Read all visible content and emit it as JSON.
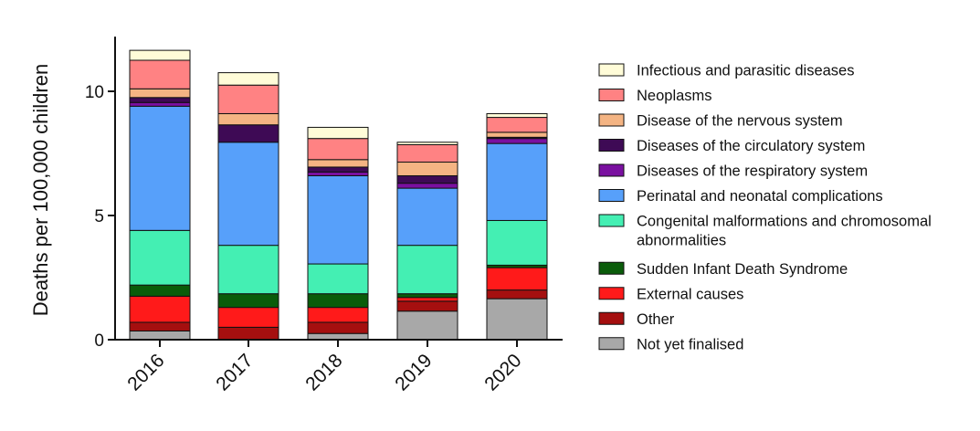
{
  "chart_data": {
    "type": "bar",
    "stacked": true,
    "title": "",
    "xlabel": "",
    "ylabel": "Deaths per 100,000 children",
    "ylim": [
      0,
      12.2
    ],
    "yticks": [
      0,
      5,
      10
    ],
    "categories": [
      "2016",
      "2017",
      "2018",
      "2019",
      "2020"
    ],
    "legend_position": "right",
    "grid": false,
    "series": [
      {
        "name": "Not yet finalised",
        "color": "#a8a8a8",
        "values": [
          0.35,
          0.0,
          0.25,
          1.15,
          1.65
        ]
      },
      {
        "name": "Other",
        "color": "#a50f0f",
        "values": [
          0.35,
          0.5,
          0.45,
          0.4,
          0.35
        ]
      },
      {
        "name": "External causes",
        "color": "#ff1a1a",
        "values": [
          1.05,
          0.8,
          0.6,
          0.15,
          0.9
        ]
      },
      {
        "name": "Sudden Infant Death Syndrome",
        "color": "#0a5c0a",
        "values": [
          0.45,
          0.55,
          0.55,
          0.15,
          0.1
        ]
      },
      {
        "name": "Congenital malformations and chromosomal abnormalities",
        "color": "#44efb3",
        "values": [
          2.2,
          1.95,
          1.2,
          1.95,
          1.8
        ]
      },
      {
        "name": "Perinatal and neonatal complications",
        "color": "#57a0fa",
        "values": [
          5.0,
          4.15,
          3.55,
          2.3,
          3.1
        ]
      },
      {
        "name": "Diseases of the respiratory system",
        "color": "#7a10a0",
        "values": [
          0.15,
          0.0,
          0.15,
          0.2,
          0.2
        ]
      },
      {
        "name": "Diseases of the circulatory system",
        "color": "#3e0a55",
        "values": [
          0.2,
          0.7,
          0.2,
          0.3,
          0.05
        ]
      },
      {
        "name": "Disease of the nervous system",
        "color": "#f4b483",
        "values": [
          0.35,
          0.45,
          0.3,
          0.55,
          0.2
        ]
      },
      {
        "name": "Neoplasms",
        "color": "#ff8283",
        "values": [
          1.15,
          1.15,
          0.85,
          0.7,
          0.6
        ]
      },
      {
        "name": "Infectious and parasitic diseases",
        "color": "#fffcd8",
        "values": [
          0.4,
          0.5,
          0.45,
          0.1,
          0.15
        ]
      }
    ]
  }
}
